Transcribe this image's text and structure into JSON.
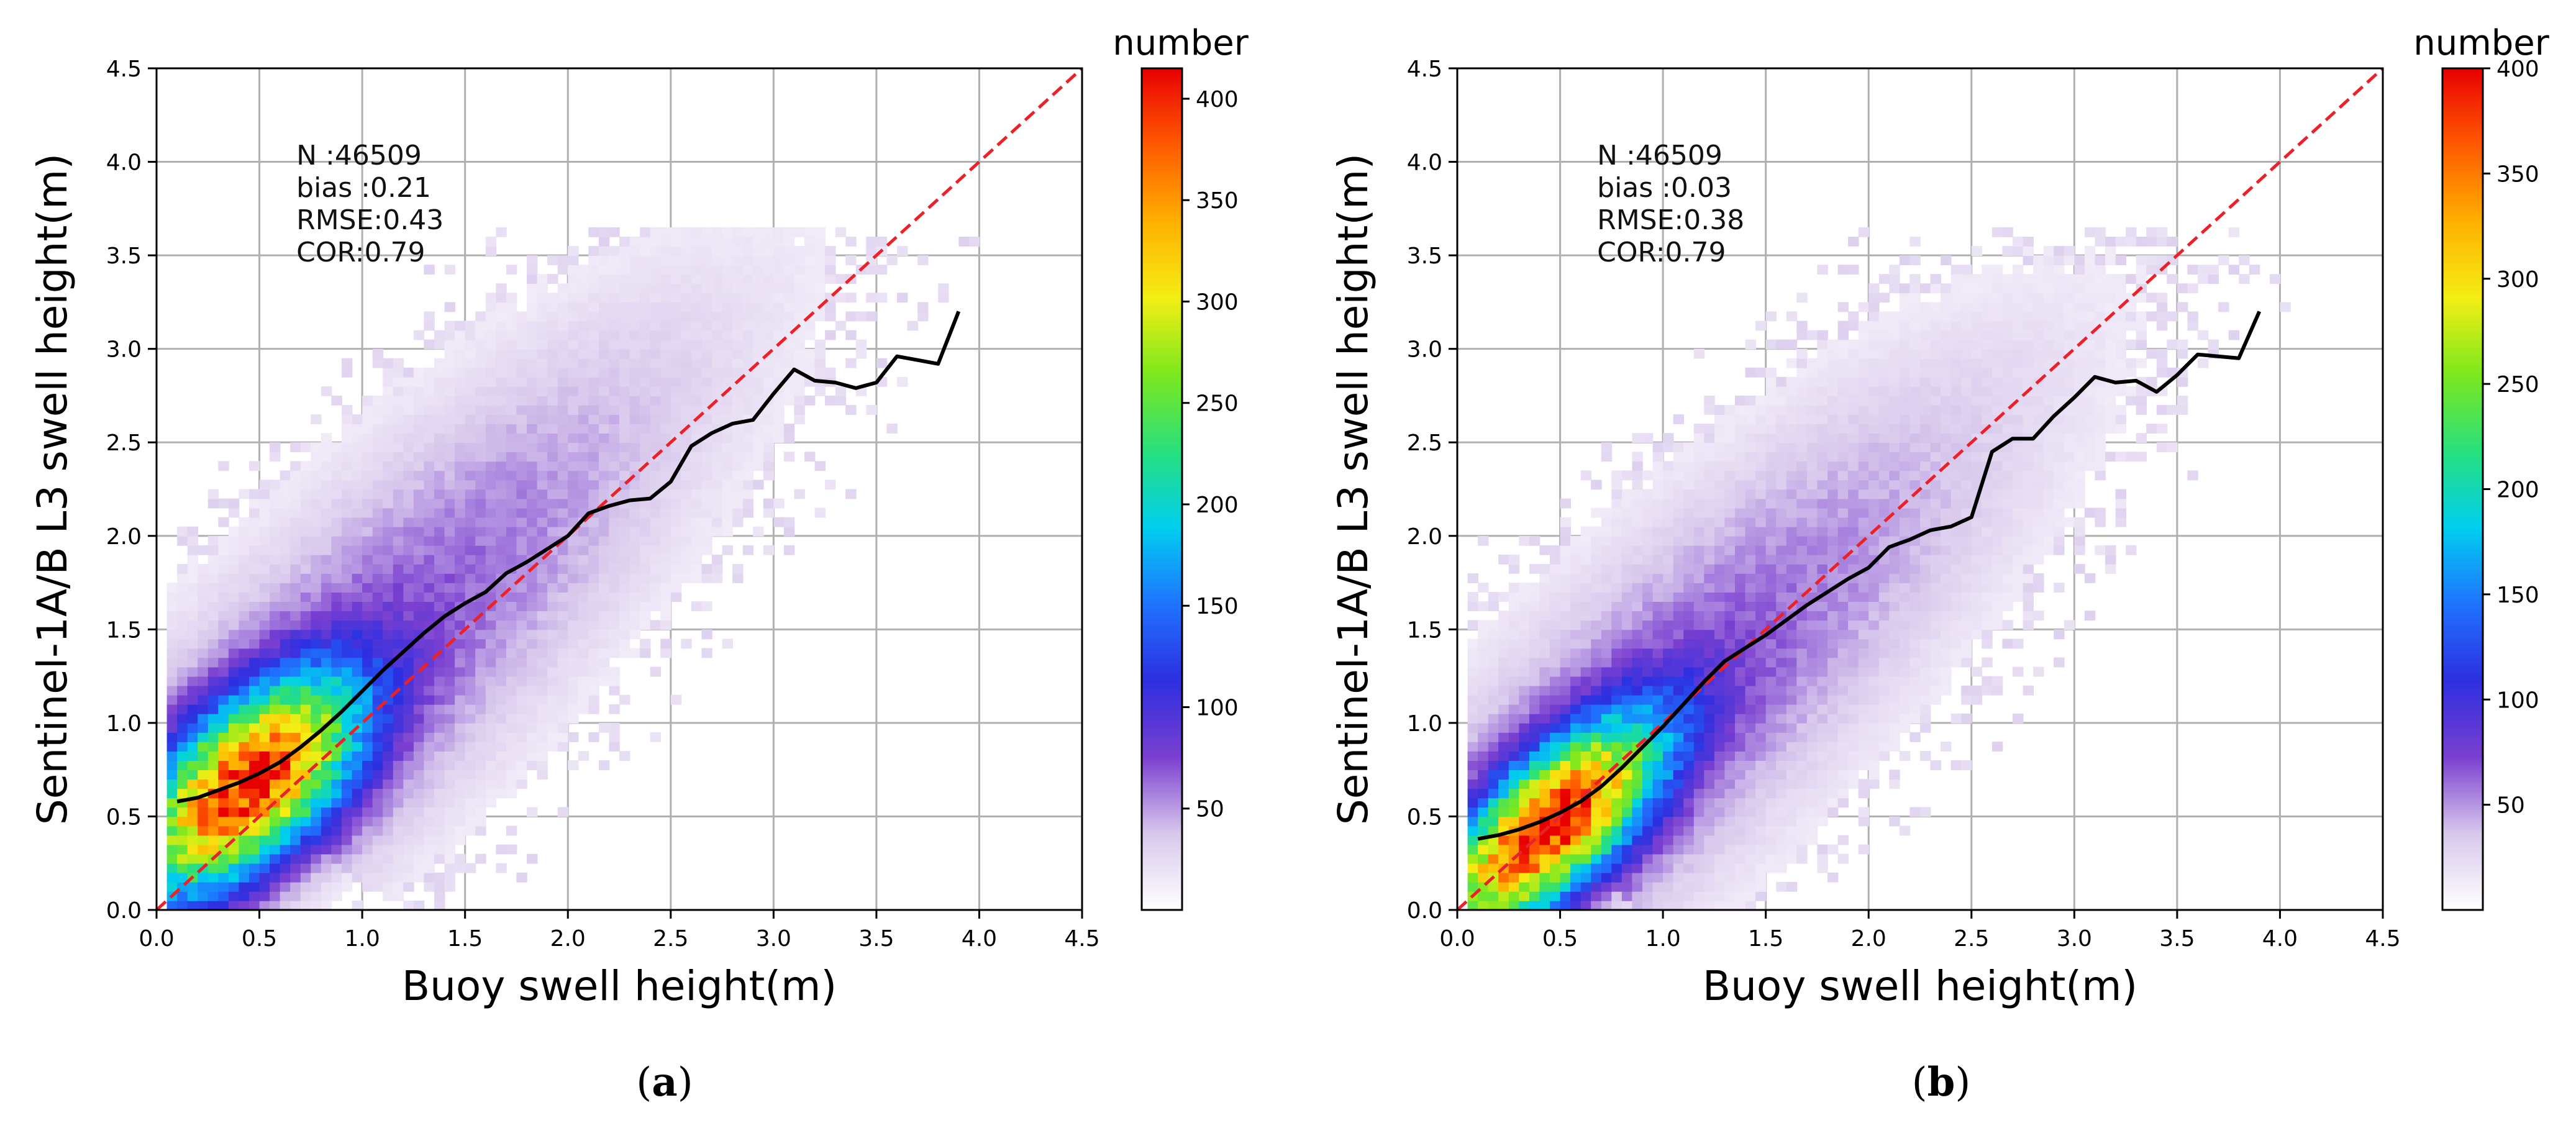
{
  "figure": {
    "colors": {
      "background": "#ffffff",
      "grid": "#b0b0b0",
      "one_to_one_line": "#e8222a",
      "fit_line": "#000000",
      "axes": "#000000"
    },
    "colormap_stops": [
      "#ffffff",
      "#d8c8ec",
      "#7a3fd0",
      "#2d2fe0",
      "#1f73ff",
      "#00cfee",
      "#28e07c",
      "#7ce81e",
      "#f4ee14",
      "#ffb000",
      "#ff5a00",
      "#e80000"
    ]
  },
  "chart_data": [
    {
      "panel_label": "a",
      "type": "heatmap",
      "xlabel": "Buoy swell height(m)",
      "ylabel": "Sentinel-1A/B L3 swell height(m)",
      "xlim": [
        0.0,
        4.5
      ],
      "ylim": [
        0.0,
        4.5
      ],
      "xticks": [
        "0.0",
        "0.5",
        "1.0",
        "1.5",
        "2.0",
        "2.5",
        "3.0",
        "3.5",
        "4.0",
        "4.5"
      ],
      "yticks": [
        "0.0",
        "0.5",
        "1.0",
        "1.5",
        "2.0",
        "2.5",
        "3.0",
        "3.5",
        "4.0",
        "4.5"
      ],
      "grid": true,
      "stats": [
        "N :46509",
        "bias :0.21",
        "RMSE:0.43",
        "COR:0.79"
      ],
      "density": {
        "center_x": 0.43,
        "center_y": 0.66,
        "spread_major": 0.42,
        "spread_minor": 0.21,
        "angle_deg": 48,
        "peak": 415
      },
      "colorbar": {
        "label": "number",
        "min": 0,
        "max": 415,
        "ticks": [
          50,
          100,
          150,
          200,
          250,
          300,
          350,
          400
        ],
        "tick_labels": [
          "50",
          "100",
          "150",
          "200",
          "250",
          "300",
          "350",
          "400"
        ]
      },
      "one_to_one": {
        "x": [
          0.0,
          4.5
        ],
        "y": [
          0.0,
          4.5
        ]
      },
      "fit_line": {
        "x": [
          0.1,
          0.2,
          0.3,
          0.4,
          0.5,
          0.6,
          0.7,
          0.8,
          0.9,
          1.0,
          1.1,
          1.2,
          1.3,
          1.4,
          1.5,
          1.6,
          1.7,
          1.8,
          1.9,
          2.0,
          2.1,
          2.2,
          2.3,
          2.4,
          2.5,
          2.6,
          2.7,
          2.8,
          2.9,
          3.0,
          3.1,
          3.2,
          3.3,
          3.4,
          3.5,
          3.6,
          3.7,
          3.8,
          3.9
        ],
        "y": [
          0.58,
          0.6,
          0.64,
          0.68,
          0.73,
          0.79,
          0.87,
          0.96,
          1.06,
          1.17,
          1.28,
          1.38,
          1.48,
          1.57,
          1.64,
          1.7,
          1.8,
          1.86,
          1.93,
          2.0,
          2.12,
          2.16,
          2.19,
          2.2,
          2.29,
          2.48,
          2.55,
          2.6,
          2.62,
          2.76,
          2.89,
          2.83,
          2.82,
          2.79,
          2.82,
          2.96,
          2.94,
          2.92,
          3.2
        ]
      }
    },
    {
      "panel_label": "b",
      "type": "heatmap",
      "xlabel": "Buoy swell height(m)",
      "ylabel": "Sentinel-1A/B L3 swell height(m)",
      "xlim": [
        0.0,
        4.5
      ],
      "ylim": [
        0.0,
        4.5
      ],
      "xticks": [
        "0.0",
        "0.5",
        "1.0",
        "1.5",
        "2.0",
        "2.5",
        "3.0",
        "3.5",
        "4.0",
        "4.5"
      ],
      "yticks": [
        "0.0",
        "0.5",
        "1.0",
        "1.5",
        "2.0",
        "2.5",
        "3.0",
        "3.5",
        "4.0",
        "4.5"
      ],
      "grid": true,
      "stats": [
        "N :46509",
        "bias :0.03",
        "RMSE:0.38",
        "COR:0.79"
      ],
      "density": {
        "center_x": 0.43,
        "center_y": 0.43,
        "spread_major": 0.45,
        "spread_minor": 0.18,
        "angle_deg": 47,
        "peak": 400
      },
      "colorbar": {
        "label": "number",
        "min": 0,
        "max": 400,
        "ticks": [
          50,
          100,
          150,
          200,
          250,
          300,
          350,
          400
        ],
        "tick_labels": [
          "50",
          "100",
          "150",
          "200",
          "250",
          "300",
          "350",
          "400"
        ]
      },
      "one_to_one": {
        "x": [
          0.0,
          4.5
        ],
        "y": [
          0.0,
          4.5
        ]
      },
      "fit_line": {
        "x": [
          0.1,
          0.2,
          0.3,
          0.4,
          0.5,
          0.6,
          0.7,
          0.8,
          0.9,
          1.0,
          1.1,
          1.2,
          1.3,
          1.4,
          1.5,
          1.6,
          1.7,
          1.8,
          1.9,
          2.0,
          2.1,
          2.2,
          2.3,
          2.4,
          2.5,
          2.6,
          2.7,
          2.8,
          2.9,
          3.0,
          3.1,
          3.2,
          3.3,
          3.4,
          3.5,
          3.6,
          3.7,
          3.8,
          3.9
        ],
        "y": [
          0.38,
          0.4,
          0.43,
          0.47,
          0.52,
          0.58,
          0.66,
          0.76,
          0.87,
          0.98,
          1.1,
          1.22,
          1.33,
          1.4,
          1.47,
          1.55,
          1.63,
          1.7,
          1.77,
          1.83,
          1.94,
          1.98,
          2.03,
          2.05,
          2.1,
          2.45,
          2.52,
          2.52,
          2.64,
          2.74,
          2.85,
          2.82,
          2.83,
          2.77,
          2.86,
          2.97,
          2.96,
          2.95,
          3.2
        ]
      }
    }
  ]
}
